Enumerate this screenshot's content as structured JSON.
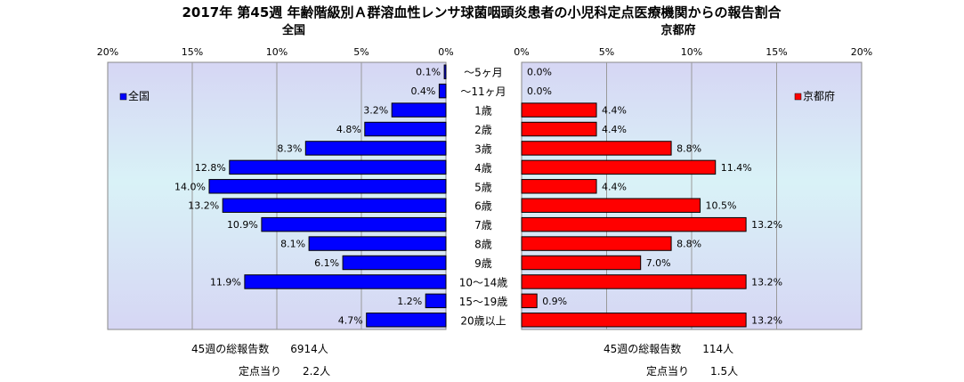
{
  "chart_data": {
    "type": "bar",
    "orientation": "horizontal-butterfly",
    "title": "2017年 第45週 年齢階級別Ａ群溶血性レンサ球菌咽頭炎患者の小児科定点医療機関からの報告割合",
    "categories": [
      "～5ヶ月",
      "～11ヶ月",
      "1歳",
      "2歳",
      "3歳",
      "4歳",
      "5歳",
      "6歳",
      "7歳",
      "8歳",
      "9歳",
      "10～14歳",
      "15～19歳",
      "20歳以上"
    ],
    "series": [
      {
        "name": "全国",
        "color": "#0000ff",
        "values": [
          0.1,
          0.4,
          3.2,
          4.8,
          8.3,
          12.8,
          14.0,
          13.2,
          10.9,
          8.1,
          6.1,
          11.9,
          1.2,
          4.7
        ],
        "labels": [
          "0.1%",
          "0.4%",
          "3.2%",
          "4.8%",
          "8.3%",
          "12.8%",
          "14.0%",
          "13.2%",
          "10.9%",
          "8.1%",
          "6.1%",
          "11.9%",
          "1.2%",
          "4.7%"
        ]
      },
      {
        "name": "京都府",
        "color": "#ff0000",
        "values": [
          0.0,
          0.0,
          4.4,
          4.4,
          8.8,
          11.4,
          4.4,
          10.5,
          13.2,
          8.8,
          7.0,
          13.2,
          0.9,
          13.2
        ],
        "labels": [
          "0.0%",
          "0.0%",
          "4.4%",
          "4.4%",
          "8.8%",
          "11.4%",
          "4.4%",
          "10.5%",
          "13.2%",
          "8.8%",
          "7.0%",
          "13.2%",
          "0.9%",
          "13.2%"
        ]
      }
    ],
    "panel_titles": [
      "全国",
      "京都府"
    ],
    "xlim": [
      0,
      20
    ],
    "ticks": [
      0,
      5,
      10,
      15,
      20
    ],
    "tick_labels_left": [
      "0%",
      "5%",
      "10%",
      "15%",
      "20%"
    ],
    "tick_labels_right": [
      "0%",
      "5%",
      "10%",
      "15%",
      "20%"
    ],
    "legend_left": "全国",
    "legend_right": "京都府",
    "grid": true,
    "legend_placement": "top-left / top-right inside panels"
  },
  "footer": {
    "national_total": "45週の総報告数　　6914人",
    "national_per_site": "定点当り　　2.2人",
    "kyoto_total": "45週の総報告数　　114人",
    "kyoto_per_site": "定点当り　　1.5人"
  }
}
